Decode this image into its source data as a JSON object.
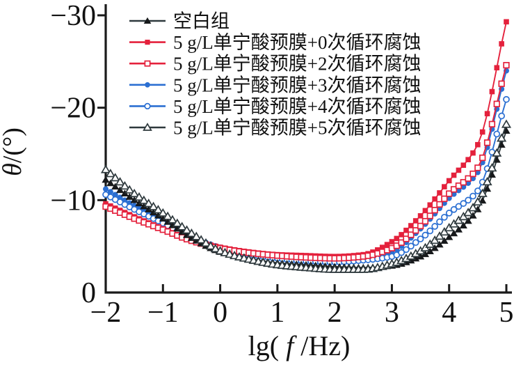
{
  "figure": {
    "background": "#ffffff",
    "axis_color": "#1a1a1a"
  },
  "chart_data": {
    "type": "line",
    "title": "",
    "xlabel": "lg(f/Hz)",
    "ylabel": "θ/(°)",
    "xlim": [
      -2,
      5
    ],
    "ylim": [
      0,
      -30
    ],
    "x_ticks": [
      -2,
      -1,
      0,
      1,
      2,
      3,
      4,
      5
    ],
    "y_ticks": [
      0,
      -10,
      -20,
      -30
    ],
    "grid": false,
    "legend_position": "top-left-inside",
    "x": [
      -2,
      -1.5,
      -1,
      -0.5,
      0,
      0.5,
      1,
      1.5,
      2,
      2.5,
      3,
      3.5,
      4,
      4.5,
      5
    ],
    "series": [
      {
        "name": "空白组",
        "color": "#2e393d",
        "marker_fill": "#17191b",
        "marker": "triangle-filled",
        "values": [
          -12.2,
          -10.0,
          -8.0,
          -5.9,
          -4.4,
          -3.7,
          -3.2,
          -3.0,
          -2.8,
          -2.7,
          -2.9,
          -3.9,
          -6.0,
          -9.0,
          -17.5
        ]
      },
      {
        "name": "5 g/L单宁酸预膜+0次循环腐蚀",
        "color": "#e4213c",
        "marker_fill": "#e4213c",
        "marker": "square-filled",
        "values": [
          -9.6,
          -8.2,
          -6.9,
          -5.7,
          -4.9,
          -4.4,
          -4.1,
          -4.0,
          -3.9,
          -4.1,
          -5.5,
          -8.3,
          -12.1,
          -16.0,
          -29.3
        ]
      },
      {
        "name": "5 g/L单宁酸预膜+2次循环腐蚀",
        "color": "#e4213c",
        "marker_fill": "#ffffff",
        "marker": "square-open",
        "values": [
          -9.3,
          -8.0,
          -6.8,
          -5.6,
          -4.8,
          -4.3,
          -4.0,
          -3.8,
          -3.7,
          -3.9,
          -4.8,
          -7.2,
          -10.7,
          -13.5,
          -24.6
        ]
      },
      {
        "name": "5 g/L单宁酸预膜+3次循环腐蚀",
        "color": "#2b6fd2",
        "marker_fill": "#2b6fd2",
        "marker": "circle-filled",
        "values": [
          -11.2,
          -9.4,
          -7.8,
          -6.1,
          -4.9,
          -4.3,
          -3.9,
          -3.7,
          -3.5,
          -3.7,
          -4.4,
          -6.9,
          -10.2,
          -13.0,
          -24.0
        ]
      },
      {
        "name": "5 g/L单宁酸预膜+4次循环腐蚀",
        "color": "#2b6fd2",
        "marker_fill": "#ffffff",
        "marker": "circle-open",
        "values": [
          -10.6,
          -9.0,
          -7.5,
          -5.9,
          -4.7,
          -4.1,
          -3.7,
          -3.4,
          -3.3,
          -3.5,
          -3.9,
          -5.8,
          -8.6,
          -11.0,
          -20.9
        ]
      },
      {
        "name": "5 g/L单宁酸预膜+5次循环腐蚀",
        "color": "#2e393d",
        "marker_fill": "#ffffff",
        "marker": "triangle-open",
        "values": [
          -13.3,
          -10.7,
          -8.6,
          -6.4,
          -4.5,
          -3.6,
          -3.0,
          -2.7,
          -2.5,
          -2.5,
          -3.1,
          -4.5,
          -7.0,
          -9.8,
          -18.2
        ]
      }
    ]
  }
}
